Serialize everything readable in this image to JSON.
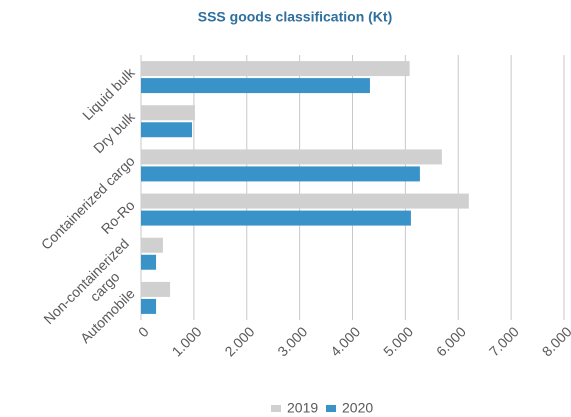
{
  "chart_data": {
    "type": "bar",
    "orientation": "horizontal",
    "title": "SSS goods classification (Kt)",
    "categories": [
      "Liquid bulk",
      "Dry bulk",
      "Containerized cargo",
      "Ro-Ro",
      "Non-containerized cargo",
      "Automobile"
    ],
    "series": [
      {
        "name": "2019",
        "color": "#d0d0d0",
        "values": [
          5080,
          1020,
          5690,
          6200,
          415,
          550
        ]
      },
      {
        "name": "2020",
        "color": "#3a93c8",
        "values": [
          4330,
          965,
          5275,
          5105,
          285,
          285
        ]
      }
    ],
    "xlim": [
      0,
      8000
    ],
    "xticks": [
      0,
      {
        "value": 1000,
        "label": "1.000"
      },
      {
        "value": 2000,
        "label": "2.000"
      },
      {
        "value": 3000,
        "label": "3.000"
      },
      {
        "value": 4000,
        "label": "4.000"
      },
      {
        "value": 5000,
        "label": "5.000"
      },
      {
        "value": 6000,
        "label": "6.000"
      },
      {
        "value": 7000,
        "label": "7.000"
      },
      {
        "value": 8000,
        "label": "8.000"
      }
    ],
    "grid": true,
    "legend": "bottom"
  }
}
